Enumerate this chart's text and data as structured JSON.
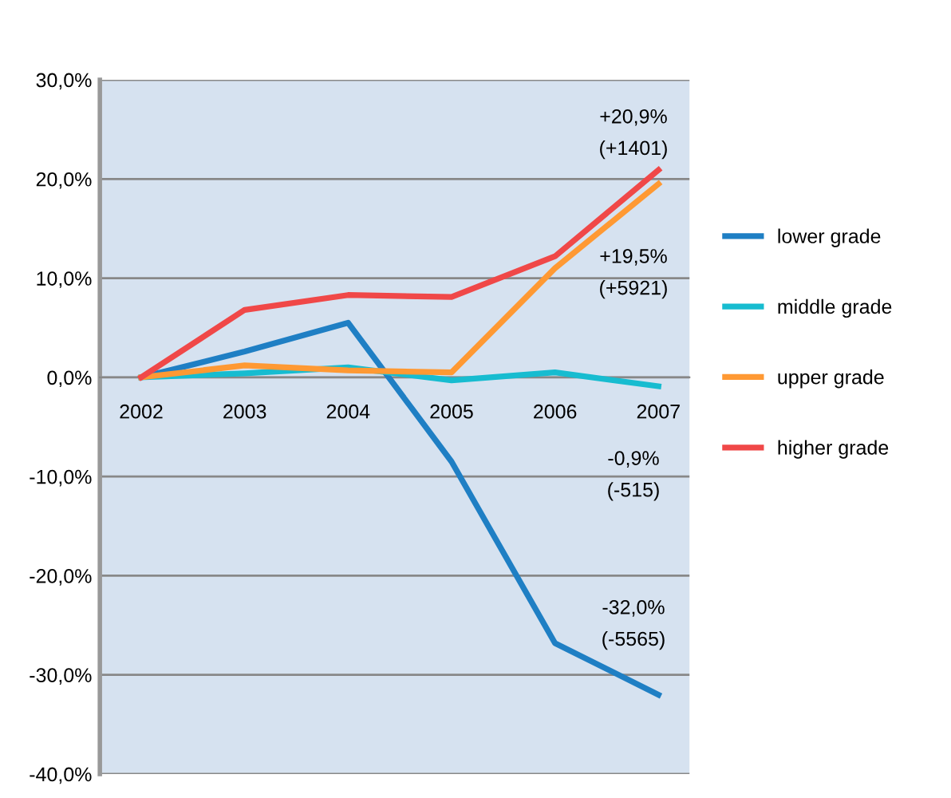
{
  "chart_data": {
    "type": "line",
    "categories": [
      "2002",
      "2003",
      "2004",
      "2005",
      "2006",
      "2007"
    ],
    "series": [
      {
        "name": "lower grade",
        "color": "#1f7fc4",
        "values": [
          0,
          2.6,
          5.5,
          -8.5,
          -26.8,
          -32.0
        ]
      },
      {
        "name": "middle grade",
        "color": "#17bcd0",
        "values": [
          0,
          0.4,
          1.0,
          -0.3,
          0.5,
          -0.9
        ]
      },
      {
        "name": "upper grade",
        "color": "#ff9933",
        "values": [
          0,
          1.2,
          0.7,
          0.5,
          11.0,
          19.5
        ]
      },
      {
        "name": "higher grade",
        "color": "#f04848",
        "values": [
          0,
          6.8,
          8.3,
          8.1,
          12.2,
          20.9
        ]
      }
    ],
    "ylim": [
      -40,
      30
    ],
    "yticks": [
      {
        "value": -40,
        "label": "-40,0%"
      },
      {
        "value": -30,
        "label": "-30,0%"
      },
      {
        "value": -20,
        "label": "-20,0%"
      },
      {
        "value": -10,
        "label": "-10,0%"
      },
      {
        "value": 0,
        "label": "0,0%"
      },
      {
        "value": 10,
        "label": "10,0%"
      },
      {
        "value": 20,
        "label": "20,0%"
      },
      {
        "value": 30,
        "label": "30,0%"
      }
    ],
    "annotations": [
      "+20,9%\n(+1401)",
      "+19,5%\n(+5921)",
      "-0,9%\n(-515)",
      "-32,0%\n(-5565)"
    ],
    "grid": "y",
    "legend": "right",
    "marker": "none",
    "line_style": "solid"
  }
}
